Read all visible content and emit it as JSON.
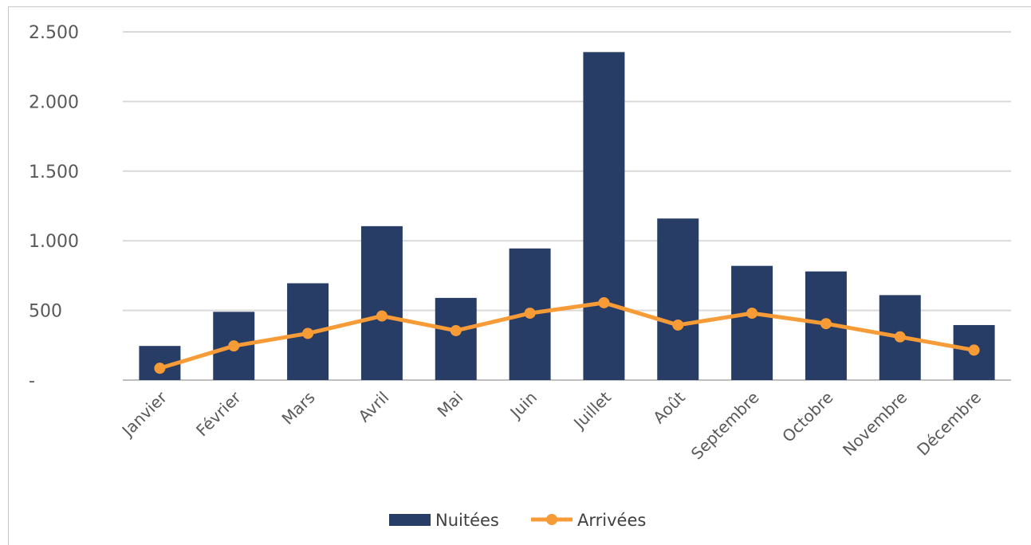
{
  "chart_data": {
    "type": "bar",
    "categories": [
      "Janvier",
      "Février",
      "Mars",
      "Avril",
      "Mai",
      "Juin",
      "Juillet",
      "Août",
      "Septembre",
      "Octobre",
      "Novembre",
      "Décembre"
    ],
    "series": [
      {
        "name": "Nuitées",
        "type": "bar",
        "color": "#283d66",
        "values": [
          245,
          490,
          695,
          1105,
          590,
          945,
          2355,
          1160,
          820,
          780,
          610,
          395
        ]
      },
      {
        "name": "Arrivées",
        "type": "line",
        "color": "#f79b37",
        "values": [
          85,
          245,
          335,
          460,
          355,
          480,
          555,
          395,
          480,
          405,
          310,
          215
        ]
      }
    ],
    "ylim": [
      0,
      2500
    ],
    "yticks": [
      {
        "value": 0,
        "label": "-"
      },
      {
        "value": 500,
        "label": "500"
      },
      {
        "value": 1000,
        "label": "1.000"
      },
      {
        "value": 1500,
        "label": "1.500"
      },
      {
        "value": 2000,
        "label": "2.000"
      },
      {
        "value": 2500,
        "label": "2.500"
      }
    ],
    "grid": true,
    "legend": "bottom"
  }
}
